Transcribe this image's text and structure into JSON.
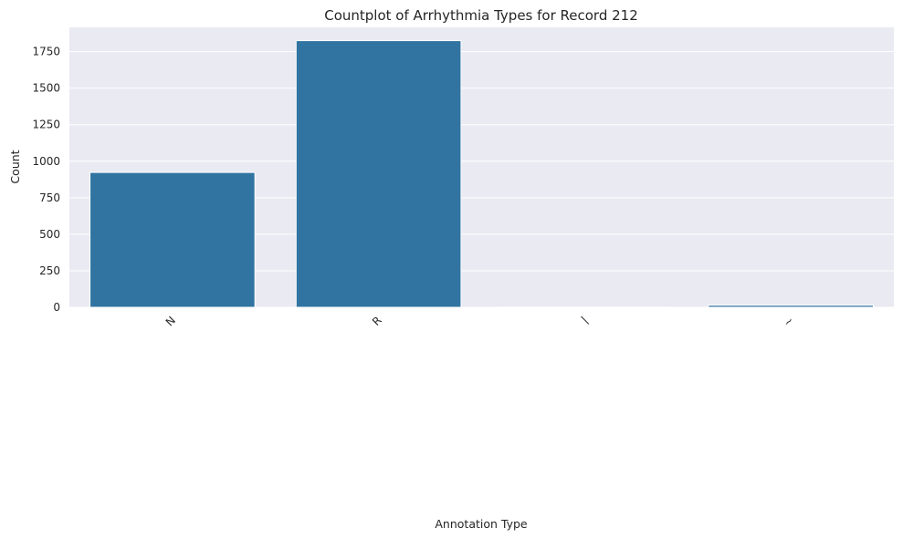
{
  "chart_data": {
    "type": "bar",
    "title": "Countplot of Arrhythmia Types for Record 212",
    "xlabel": "Annotation Type",
    "ylabel": "Count",
    "categories": [
      "N",
      "R",
      "|",
      "~"
    ],
    "values": [
      923,
      1825,
      1,
      14
    ],
    "ylim": [
      0,
      1916
    ],
    "yticks": [
      0,
      250,
      500,
      750,
      1000,
      1250,
      1500,
      1750
    ],
    "grid": true,
    "style": "seaborn-darkgrid",
    "bar_color": "#3274a1",
    "background_color": "#eaeaf2",
    "grid_color": "#ffffff",
    "xtick_rotation_deg": 45
  }
}
